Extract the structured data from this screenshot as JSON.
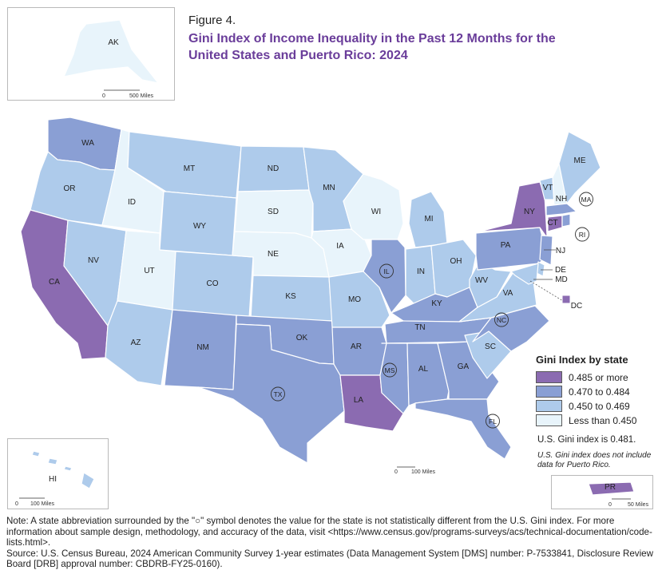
{
  "figure": {
    "label": "Figure 4.",
    "title": "Gini Index of Income Inequality in the Past 12 Months for the United States and Puerto Rico: 2024"
  },
  "legend": {
    "title": "Gini Index by state",
    "classes": [
      {
        "label": "0.485 or more",
        "color": "#8b6bb1"
      },
      {
        "label": "0.470 to 0.484",
        "color": "#8a9fd4"
      },
      {
        "label": "0.450 to 0.469",
        "color": "#aecbeb"
      },
      {
        "label": "Less than 0.450",
        "color": "#e8f4fb"
      }
    ]
  },
  "us_gini": "U.S. Gini index is 0.481.",
  "pr_note": "U.S. Gini index does not include data for Puerto Rico.",
  "scale_bars": {
    "ak": {
      "zero": "0",
      "dist": "500 Miles"
    },
    "hi": {
      "zero": "0",
      "dist": "100 Miles"
    },
    "pr": {
      "zero": "0",
      "dist": "50 Miles"
    },
    "main": {
      "zero": "0",
      "dist": "100 Miles"
    }
  },
  "states": {
    "WA": {
      "label": "WA",
      "class": 1,
      "circled": false
    },
    "OR": {
      "label": "OR",
      "class": 2,
      "circled": false
    },
    "CA": {
      "label": "CA",
      "class": 0,
      "circled": false
    },
    "ID": {
      "label": "ID",
      "class": 3,
      "circled": false
    },
    "NV": {
      "label": "NV",
      "class": 2,
      "circled": false
    },
    "UT": {
      "label": "UT",
      "class": 3,
      "circled": false
    },
    "AZ": {
      "label": "AZ",
      "class": 2,
      "circled": false
    },
    "MT": {
      "label": "MT",
      "class": 2,
      "circled": false
    },
    "WY": {
      "label": "WY",
      "class": 2,
      "circled": false
    },
    "CO": {
      "label": "CO",
      "class": 2,
      "circled": false
    },
    "NM": {
      "label": "NM",
      "class": 1,
      "circled": false
    },
    "ND": {
      "label": "ND",
      "class": 2,
      "circled": false
    },
    "SD": {
      "label": "SD",
      "class": 3,
      "circled": false
    },
    "NE": {
      "label": "NE",
      "class": 3,
      "circled": false
    },
    "KS": {
      "label": "KS",
      "class": 2,
      "circled": false
    },
    "OK": {
      "label": "OK",
      "class": 1,
      "circled": false
    },
    "TX": {
      "label": "TX",
      "class": 1,
      "circled": true
    },
    "MN": {
      "label": "MN",
      "class": 2,
      "circled": false
    },
    "IA": {
      "label": "IA",
      "class": 3,
      "circled": false
    },
    "MO": {
      "label": "MO",
      "class": 2,
      "circled": false
    },
    "AR": {
      "label": "AR",
      "class": 1,
      "circled": false
    },
    "LA": {
      "label": "LA",
      "class": 0,
      "circled": false
    },
    "WI": {
      "label": "WI",
      "class": 3,
      "circled": false
    },
    "IL": {
      "label": "IL",
      "class": 1,
      "circled": true
    },
    "MI": {
      "label": "MI",
      "class": 2,
      "circled": false
    },
    "IN": {
      "label": "IN",
      "class": 2,
      "circled": false
    },
    "OH": {
      "label": "OH",
      "class": 2,
      "circled": false
    },
    "KY": {
      "label": "KY",
      "class": 1,
      "circled": false
    },
    "TN": {
      "label": "TN",
      "class": 1,
      "circled": false
    },
    "MS": {
      "label": "MS",
      "class": 1,
      "circled": true
    },
    "AL": {
      "label": "AL",
      "class": 1,
      "circled": false
    },
    "GA": {
      "label": "GA",
      "class": 1,
      "circled": false
    },
    "FL": {
      "label": "FL",
      "class": 1,
      "circled": true
    },
    "SC": {
      "label": "SC",
      "class": 2,
      "circled": false
    },
    "NC": {
      "label": "NC",
      "class": 1,
      "circled": true
    },
    "VA": {
      "label": "VA",
      "class": 2,
      "circled": false
    },
    "WV": {
      "label": "WV",
      "class": 2,
      "circled": false
    },
    "PA": {
      "label": "PA",
      "class": 1,
      "circled": false
    },
    "NY": {
      "label": "NY",
      "class": 0,
      "circled": false
    },
    "VT": {
      "label": "VT",
      "class": 2,
      "circled": false
    },
    "NH": {
      "label": "NH",
      "class": 3,
      "circled": false
    },
    "ME": {
      "label": "ME",
      "class": 2,
      "circled": false
    },
    "MA": {
      "label": "MA",
      "class": 1,
      "circled": true
    },
    "RI": {
      "label": "RI",
      "class": 1,
      "circled": true
    },
    "CT": {
      "label": "CT",
      "class": 0,
      "circled": false
    },
    "NJ": {
      "label": "NJ",
      "class": 1,
      "circled": false
    },
    "DE": {
      "label": "DE",
      "class": 2,
      "circled": false
    },
    "MD": {
      "label": "MD",
      "class": 2,
      "circled": false
    },
    "DC": {
      "label": "DC",
      "class": 0,
      "circled": false
    },
    "AK": {
      "label": "AK",
      "class": 3,
      "circled": false
    },
    "HI": {
      "label": "HI",
      "class": 2,
      "circled": false
    },
    "PR": {
      "label": "PR",
      "class": 0,
      "circled": false
    }
  },
  "notes": {
    "note": "Note: A state abbreviation surrounded by the \"○\" symbol denotes the value for the state is not statistically different from the U.S. Gini index. For more information about sample design, methodology, and accuracy of the data, visit <https://www.census.gov/programs-surveys/acs/technical-documentation/code-lists.html>.",
    "source": "Source: U.S. Census Bureau, 2024 American Community Survey 1-year estimates (Data Management System [DMS] number: P-7533841, Disclosure Review Board [DRB] approval number: CBDRB-FY25-0160)."
  }
}
